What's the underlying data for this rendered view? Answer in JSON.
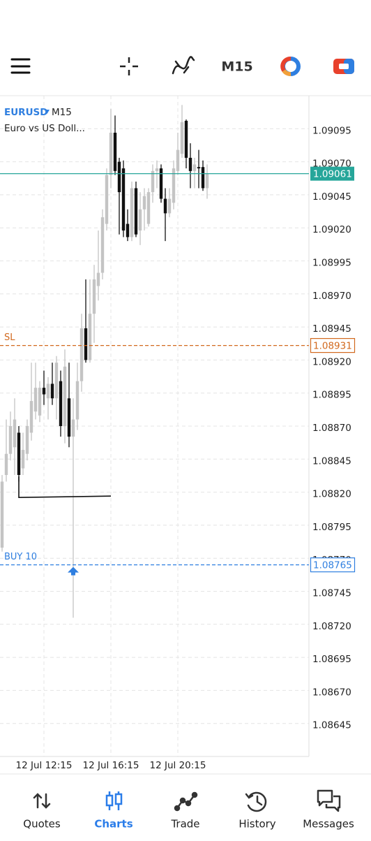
{
  "toolbar": {
    "timeframe": "M15"
  },
  "chart_data": {
    "type": "candlestick",
    "symbol": "EURUSD",
    "timeframe": "M15",
    "description": "Euro vs US Doll...",
    "categories": [
      null,
      null,
      null,
      null,
      null,
      null,
      null,
      null,
      null,
      null,
      "12 Jul 12:15",
      null,
      null,
      null,
      null,
      null,
      null,
      null,
      null,
      null,
      null,
      null,
      null,
      null,
      null,
      null,
      "12 Jul 16:15",
      null,
      null,
      null,
      null,
      null,
      null,
      null,
      null,
      null,
      null,
      null,
      null,
      null,
      null,
      null,
      "12 Jul 20:15",
      null,
      null,
      null,
      null,
      null,
      null,
      null
    ],
    "open": [
      1.08778,
      1.08833,
      1.08849,
      1.08854,
      1.08865,
      1.08838,
      1.08849,
      1.08865,
      1.08881,
      1.08878,
      1.08899,
      1.08891,
      1.08902,
      1.08891,
      1.08904,
      1.0887,
      1.08891,
      1.08862,
      1.08875,
      1.08904,
      1.08944,
      1.0892,
      1.08955,
      1.08976,
      1.08986,
      1.09023,
      1.0906,
      1.09092,
      1.0907,
      1.09065,
      1.09023,
      1.09013,
      1.0905,
      1.09018,
      1.09034,
      1.09023,
      1.09047,
      1.09063,
      1.09065,
      1.09042,
      1.09031,
      1.09039,
      1.09063,
      1.09076,
      1.09101,
      1.09073,
      1.09063,
      1.09066,
      1.09066,
      1.0905
    ],
    "high": [
      1.08833,
      1.08875,
      1.08881,
      1.08891,
      1.0887,
      1.08865,
      1.08875,
      1.08918,
      1.08918,
      1.08904,
      1.08912,
      1.08907,
      1.08918,
      1.08923,
      1.08912,
      1.08928,
      1.08918,
      1.08891,
      1.08918,
      1.08955,
      1.08981,
      1.08981,
      1.08992,
      1.09018,
      1.09034,
      1.09065,
      1.0911,
      1.09105,
      1.09073,
      1.09071,
      1.09034,
      1.09055,
      1.09055,
      1.09047,
      1.0905,
      1.0905,
      1.09068,
      1.09071,
      1.09068,
      1.0905,
      1.0905,
      1.09071,
      1.09092,
      1.09113,
      1.09102,
      1.09084,
      1.09073,
      1.09079,
      1.09071,
      1.09068
    ],
    "low": [
      1.08775,
      1.08828,
      1.08844,
      1.08833,
      1.08828,
      1.08833,
      1.08844,
      1.08859,
      1.08875,
      1.08873,
      1.08886,
      1.08875,
      1.08886,
      1.08875,
      1.08862,
      1.08857,
      1.08854,
      1.08725,
      1.08867,
      1.08896,
      1.08918,
      1.08918,
      1.08933,
      1.08965,
      1.08981,
      1.09018,
      1.0905,
      1.0906,
      1.09015,
      1.09013,
      1.0901,
      1.0901,
      1.09013,
      1.09007,
      1.09018,
      1.09021,
      1.09039,
      1.0905,
      1.09039,
      1.0901,
      1.09028,
      1.09034,
      1.0906,
      1.09073,
      1.09065,
      1.0905,
      1.0905,
      1.0905,
      1.09048,
      1.09042
    ],
    "close": [
      1.08828,
      1.08849,
      1.0887,
      1.08875,
      1.08833,
      1.08852,
      1.0887,
      1.08889,
      1.08899,
      1.08899,
      1.08894,
      1.08902,
      1.08891,
      1.08918,
      1.0887,
      1.08915,
      1.08862,
      1.08875,
      1.08904,
      1.08944,
      1.0892,
      1.08955,
      1.08981,
      1.08986,
      1.09028,
      1.0906,
      1.09092,
      1.09063,
      1.09047,
      1.09018,
      1.09013,
      1.0905,
      1.09015,
      1.09034,
      1.09044,
      1.09047,
      1.09063,
      1.09065,
      1.09042,
      1.09031,
      1.09042,
      1.09065,
      1.09079,
      1.091,
      1.09073,
      1.09063,
      1.09068,
      1.09065,
      1.0905,
      1.09061
    ],
    "up_color": "#c4c4c4",
    "down_color": "#111111",
    "ylim": [
      1.0862,
      1.0912
    ],
    "yticks": [
      {
        "value": 1.09095,
        "label": "1.09095"
      },
      {
        "value": 1.0907,
        "label": "1.09070"
      },
      {
        "value": 1.09045,
        "label": "1.09045"
      },
      {
        "value": 1.0902,
        "label": "1.09020"
      },
      {
        "value": 1.08995,
        "label": "1.08995"
      },
      {
        "value": 1.0897,
        "label": "1.08970"
      },
      {
        "value": 1.08945,
        "label": "1.08945"
      },
      {
        "value": 1.0892,
        "label": "1.08920"
      },
      {
        "value": 1.08895,
        "label": "1.08895"
      },
      {
        "value": 1.0887,
        "label": "1.08870"
      },
      {
        "value": 1.08845,
        "label": "1.08845"
      },
      {
        "value": 1.0882,
        "label": "1.08820"
      },
      {
        "value": 1.08795,
        "label": "1.08795"
      },
      {
        "value": 1.0877,
        "label": "1.08770"
      },
      {
        "value": 1.08745,
        "label": "1.08745"
      },
      {
        "value": 1.0872,
        "label": "1.08720"
      },
      {
        "value": 1.08695,
        "label": "1.08695"
      },
      {
        "value": 1.0867,
        "label": "1.08670"
      },
      {
        "value": 1.08645,
        "label": "1.08645"
      }
    ],
    "grid": true,
    "last_price": {
      "value": 1.09061,
      "color": "#26a69a"
    },
    "levels": [
      {
        "name": "SL",
        "value": 1.08931,
        "color": "#d2691e"
      },
      {
        "name": "BUY 10",
        "value": 1.08765,
        "color": "#2f7fe0"
      }
    ],
    "trendline": {
      "value": 1.08816,
      "color": "#111111"
    }
  },
  "nav": {
    "items": [
      "Quotes",
      "Charts",
      "Trade",
      "History",
      "Messages"
    ],
    "active": 1
  }
}
